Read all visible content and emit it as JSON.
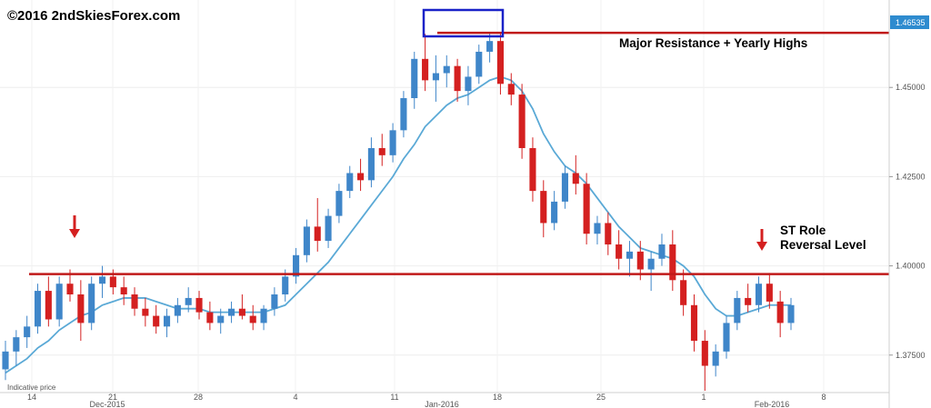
{
  "watermark": "©2016 2ndSkiesForex.com",
  "indicative_label": "Indicative price",
  "annotations": {
    "resistance": "Major Resistance + Yearly Highs",
    "st_line1": "ST Role",
    "st_line2": "Reversal Level"
  },
  "colors": {
    "up_candle": "#3f86c9",
    "down_candle": "#d42020",
    "ma_line": "#5aa9d6",
    "level_line": "#c01818",
    "highlight_box": "#1a22c8",
    "arrow": "#d42020",
    "price_tag_bg": "#2e8bcf"
  },
  "chart_data": {
    "type": "candlestick",
    "symbol": "",
    "ylim": [
      1.3645,
      1.4745
    ],
    "y_ticks": [
      "1.45000",
      "1.42500",
      "1.40000",
      "1.37500"
    ],
    "y_tick_values": [
      1.45,
      1.425,
      1.4,
      1.375
    ],
    "x_ticks": [
      "14",
      "21",
      "28",
      "4",
      "11",
      "18",
      "25",
      "1",
      "8"
    ],
    "x_month_labels": [
      "Dec-2015",
      "Jan-2016",
      "Feb-2016"
    ],
    "price_tag": "1.46535",
    "levels": [
      {
        "price": 1.4653,
        "label": "Major Resistance + Yearly Highs"
      },
      {
        "price": 1.3977,
        "label": "ST Role Reversal Level"
      }
    ],
    "moving_average": {
      "type": "line",
      "name": ""
    },
    "grid": true,
    "ohlc_points": [
      [
        1.371,
        1.379,
        1.368,
        1.376
      ],
      [
        1.376,
        1.382,
        1.372,
        1.38
      ],
      [
        1.38,
        1.386,
        1.377,
        1.383
      ],
      [
        1.383,
        1.395,
        1.381,
        1.393
      ],
      [
        1.393,
        1.397,
        1.383,
        1.385
      ],
      [
        1.385,
        1.397,
        1.383,
        1.395
      ],
      [
        1.395,
        1.399,
        1.39,
        1.392
      ],
      [
        1.392,
        1.396,
        1.379,
        1.384
      ],
      [
        1.384,
        1.397,
        1.382,
        1.395
      ],
      [
        1.395,
        1.4,
        1.391,
        1.397
      ],
      [
        1.397,
        1.399,
        1.392,
        1.394
      ],
      [
        1.394,
        1.397,
        1.389,
        1.392
      ],
      [
        1.392,
        1.394,
        1.386,
        1.388
      ],
      [
        1.388,
        1.391,
        1.383,
        1.386
      ],
      [
        1.386,
        1.389,
        1.381,
        1.383
      ],
      [
        1.383,
        1.388,
        1.38,
        1.386
      ],
      [
        1.386,
        1.391,
        1.384,
        1.389
      ],
      [
        1.389,
        1.394,
        1.387,
        1.391
      ],
      [
        1.391,
        1.393,
        1.385,
        1.387
      ],
      [
        1.387,
        1.39,
        1.382,
        1.384
      ],
      [
        1.384,
        1.388,
        1.381,
        1.386
      ],
      [
        1.386,
        1.39,
        1.384,
        1.388
      ],
      [
        1.388,
        1.392,
        1.385,
        1.386
      ],
      [
        1.386,
        1.389,
        1.382,
        1.384
      ],
      [
        1.384,
        1.389,
        1.382,
        1.388
      ],
      [
        1.388,
        1.394,
        1.386,
        1.392
      ],
      [
        1.392,
        1.399,
        1.39,
        1.397
      ],
      [
        1.397,
        1.405,
        1.395,
        1.403
      ],
      [
        1.403,
        1.413,
        1.401,
        1.411
      ],
      [
        1.411,
        1.419,
        1.404,
        1.407
      ],
      [
        1.407,
        1.416,
        1.405,
        1.414
      ],
      [
        1.414,
        1.423,
        1.412,
        1.421
      ],
      [
        1.421,
        1.428,
        1.419,
        1.426
      ],
      [
        1.426,
        1.43,
        1.421,
        1.424
      ],
      [
        1.424,
        1.436,
        1.422,
        1.433
      ],
      [
        1.433,
        1.437,
        1.428,
        1.431
      ],
      [
        1.431,
        1.44,
        1.429,
        1.438
      ],
      [
        1.438,
        1.449,
        1.436,
        1.447
      ],
      [
        1.447,
        1.46,
        1.444,
        1.458
      ],
      [
        1.458,
        1.465,
        1.449,
        1.452
      ],
      [
        1.452,
        1.459,
        1.446,
        1.454
      ],
      [
        1.454,
        1.459,
        1.45,
        1.456
      ],
      [
        1.456,
        1.458,
        1.446,
        1.449
      ],
      [
        1.449,
        1.456,
        1.445,
        1.453
      ],
      [
        1.453,
        1.462,
        1.451,
        1.46
      ],
      [
        1.46,
        1.4655,
        1.457,
        1.463
      ],
      [
        1.463,
        1.4653,
        1.448,
        1.451
      ],
      [
        1.451,
        1.454,
        1.445,
        1.448
      ],
      [
        1.448,
        1.451,
        1.43,
        1.433
      ],
      [
        1.433,
        1.436,
        1.418,
        1.421
      ],
      [
        1.421,
        1.424,
        1.408,
        1.412
      ],
      [
        1.412,
        1.421,
        1.41,
        1.418
      ],
      [
        1.418,
        1.428,
        1.416,
        1.426
      ],
      [
        1.426,
        1.431,
        1.42,
        1.423
      ],
      [
        1.423,
        1.426,
        1.406,
        1.409
      ],
      [
        1.409,
        1.414,
        1.406,
        1.412
      ],
      [
        1.412,
        1.415,
        1.403,
        1.406
      ],
      [
        1.406,
        1.41,
        1.399,
        1.402
      ],
      [
        1.402,
        1.407,
        1.397,
        1.404
      ],
      [
        1.404,
        1.407,
        1.396,
        1.399
      ],
      [
        1.399,
        1.404,
        1.393,
        1.402
      ],
      [
        1.402,
        1.409,
        1.4,
        1.406
      ],
      [
        1.406,
        1.41,
        1.393,
        1.396
      ],
      [
        1.396,
        1.399,
        1.386,
        1.389
      ],
      [
        1.389,
        1.392,
        1.376,
        1.379
      ],
      [
        1.379,
        1.382,
        1.365,
        1.372
      ],
      [
        1.372,
        1.378,
        1.369,
        1.376
      ],
      [
        1.376,
        1.386,
        1.374,
        1.384
      ],
      [
        1.384,
        1.393,
        1.382,
        1.391
      ],
      [
        1.391,
        1.395,
        1.387,
        1.389
      ],
      [
        1.389,
        1.397,
        1.387,
        1.395
      ],
      [
        1.395,
        1.398,
        1.388,
        1.39
      ],
      [
        1.39,
        1.393,
        1.38,
        1.384
      ],
      [
        1.384,
        1.391,
        1.382,
        1.389
      ]
    ],
    "ma_points": [
      1.37,
      1.372,
      1.374,
      1.377,
      1.379,
      1.382,
      1.384,
      1.386,
      1.387,
      1.389,
      1.39,
      1.391,
      1.391,
      1.391,
      1.39,
      1.389,
      1.388,
      1.388,
      1.388,
      1.387,
      1.387,
      1.387,
      1.387,
      1.387,
      1.387,
      1.388,
      1.389,
      1.392,
      1.395,
      1.398,
      1.401,
      1.405,
      1.409,
      1.413,
      1.417,
      1.421,
      1.425,
      1.43,
      1.434,
      1.439,
      1.442,
      1.445,
      1.447,
      1.448,
      1.45,
      1.452,
      1.453,
      1.452,
      1.449,
      1.444,
      1.437,
      1.432,
      1.428,
      1.426,
      1.423,
      1.419,
      1.415,
      1.411,
      1.408,
      1.405,
      1.404,
      1.403,
      1.402,
      1.4,
      1.397,
      1.392,
      1.388,
      1.386,
      1.386,
      1.387,
      1.388,
      1.389,
      1.389,
      1.389
    ]
  }
}
